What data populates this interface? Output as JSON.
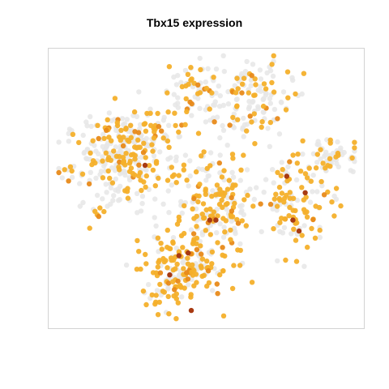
{
  "chart_data": {
    "type": "scatter",
    "title": "Tbx15 expression",
    "xlabel": "",
    "ylabel": "",
    "axes_visible": false,
    "xlim": [
      0,
      100
    ],
    "ylim": [
      0,
      100
    ],
    "grid": false,
    "legend": "none",
    "colors": {
      "background_points": "#e6e6e6",
      "low": "#f4b02b",
      "mid": "#e88a1a",
      "high": "#a83a12",
      "frame": "#d3d3d3"
    },
    "clusters": [
      {
        "region": "upper-left",
        "cx": 20,
        "cy": 58,
        "sx": 8,
        "sy": 9,
        "n_bg": 140,
        "n_expr": 90
      },
      {
        "region": "left-center",
        "cx": 30,
        "cy": 68,
        "sx": 7,
        "sy": 6,
        "n_bg": 60,
        "n_expr": 40
      },
      {
        "region": "top-center",
        "cx": 45,
        "cy": 86,
        "sx": 4,
        "sy": 6,
        "n_bg": 40,
        "n_expr": 25
      },
      {
        "region": "top-right",
        "cx": 64,
        "cy": 82,
        "sx": 7,
        "sy": 7,
        "n_bg": 90,
        "n_expr": 45
      },
      {
        "region": "center",
        "cx": 53,
        "cy": 45,
        "sx": 8,
        "sy": 10,
        "n_bg": 90,
        "n_expr": 110
      },
      {
        "region": "lower-center",
        "cx": 41,
        "cy": 20,
        "sx": 8,
        "sy": 7,
        "n_bg": 70,
        "n_expr": 120
      },
      {
        "region": "right-lobe",
        "cx": 79,
        "cy": 45,
        "sx": 5,
        "sy": 9,
        "n_bg": 50,
        "n_expr": 70
      },
      {
        "region": "far-right",
        "cx": 92,
        "cy": 61,
        "sx": 4,
        "sy": 3,
        "n_bg": 40,
        "n_expr": 15
      }
    ],
    "high_expression_points": [
      {
        "x": 30,
        "y": 58
      },
      {
        "x": 41,
        "y": 25
      },
      {
        "x": 44,
        "y": 26
      },
      {
        "x": 38,
        "y": 18
      },
      {
        "x": 45,
        "y": 5
      },
      {
        "x": 51,
        "y": 38
      },
      {
        "x": 53,
        "y": 38
      },
      {
        "x": 76,
        "y": 54
      },
      {
        "x": 82,
        "y": 48
      },
      {
        "x": 78,
        "y": 38
      },
      {
        "x": 80,
        "y": 34
      }
    ]
  }
}
